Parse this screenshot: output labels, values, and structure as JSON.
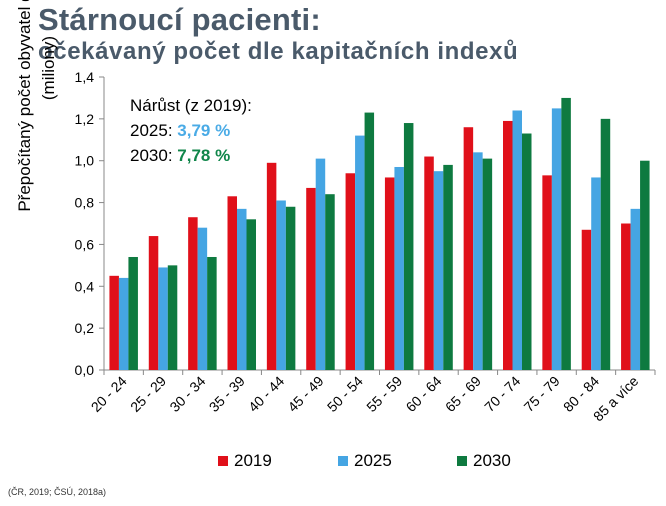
{
  "title": {
    "line1": "Stárnoucí pacienti:",
    "line2": "očekávaný počet dle kapitačních indexů"
  },
  "annotation": {
    "heading": "Nárůst (z 2019):",
    "rows": [
      {
        "year": "2025:",
        "value": "3,79 %"
      },
      {
        "year": "2030:",
        "value": "7,78 %"
      }
    ]
  },
  "source": "(ČR, 2019; ČSÚ, 2018a)",
  "colors": {
    "2019": "#e0101a",
    "2025": "#45a5e3",
    "2030": "#0e7a40",
    "title": "#4a5a6a"
  },
  "chart_data": {
    "type": "bar",
    "ylabel_line1": "Přepočítaný počet obyvatel  dle indexů",
    "ylabel_line2": "(miliony)",
    "xlabel": "",
    "ylim": [
      0,
      1.4
    ],
    "yticks": [
      "0,0",
      "0,2",
      "0,4",
      "0,6",
      "0,8",
      "1,0",
      "1,2",
      "1,4"
    ],
    "categories": [
      "20 - 24",
      "25 - 29",
      "30 - 34",
      "35 - 39",
      "40 - 44",
      "45 - 49",
      "50 - 54",
      "55 - 59",
      "60 - 64",
      "65 - 69",
      "70 - 74",
      "75 - 79",
      "80 - 84",
      "85 a více"
    ],
    "series": [
      {
        "name": "2019",
        "values": [
          0.45,
          0.64,
          0.73,
          0.83,
          0.99,
          0.87,
          0.94,
          0.92,
          1.02,
          1.16,
          1.19,
          0.93,
          0.67,
          0.7
        ]
      },
      {
        "name": "2025",
        "values": [
          0.44,
          0.49,
          0.68,
          0.77,
          0.81,
          1.01,
          1.12,
          0.97,
          0.95,
          1.04,
          1.24,
          1.25,
          0.92,
          0.77
        ]
      },
      {
        "name": "2030",
        "values": [
          0.54,
          0.5,
          0.54,
          0.72,
          0.78,
          0.84,
          1.23,
          1.18,
          0.98,
          1.01,
          1.13,
          1.3,
          1.2,
          1.0
        ]
      }
    ],
    "grid": false,
    "legend": "bottom"
  }
}
